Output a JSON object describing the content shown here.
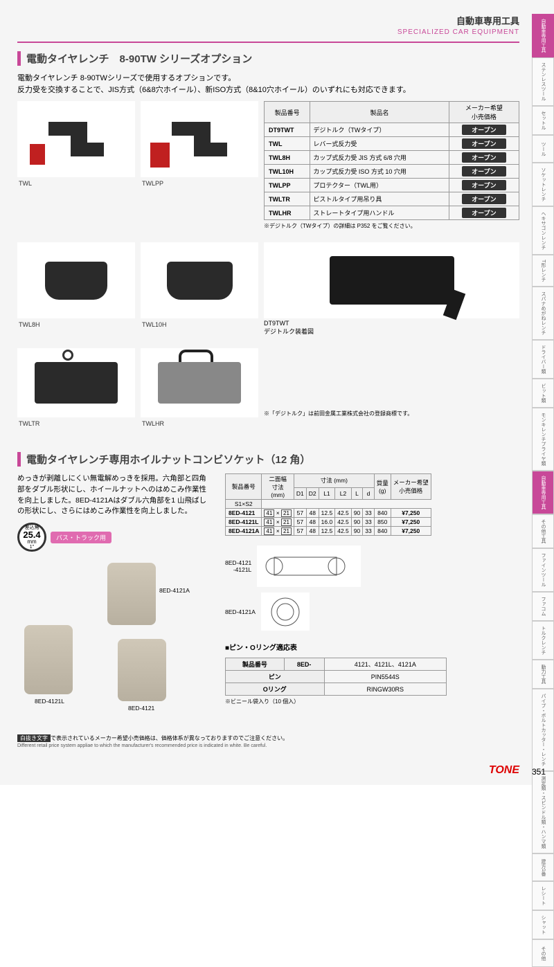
{
  "header": {
    "jp_category": "自動車専用工具",
    "en_category": "SPECIALIZED CAR EQUIPMENT"
  },
  "section1": {
    "title": "電動タイヤレンチ　8-90TW シリーズオプション",
    "intro1": "電動タイヤレンチ 8-90TWシリーズで使用するオプションです。",
    "intro2": "反力受を交換することで、JIS方式（6&8穴ホイール）、新ISO方式（8&10穴ホイール）のいずれにも対応できます。",
    "table_headers": {
      "pn": "製品番号",
      "name": "製品名",
      "price": "メーカー希望\n小売価格"
    },
    "rows": [
      {
        "pn": "DT9TWT",
        "name": "デジトルク（TWタイプ）",
        "price": "オープン"
      },
      {
        "pn": "TWL",
        "name": "レバー式反力受",
        "price": "オープン"
      },
      {
        "pn": "TWL8H",
        "name": "カップ式反力受 JIS 方式 6/8 穴用",
        "price": "オープン"
      },
      {
        "pn": "TWL10H",
        "name": "カップ式反力受 ISO 方式 10 穴用",
        "price": "オープン"
      },
      {
        "pn": "TWLPP",
        "name": "プロテクター（TWL用）",
        "price": "オープン"
      },
      {
        "pn": "TWLTR",
        "name": "ピストルタイプ用吊り具",
        "price": "オープン"
      },
      {
        "pn": "TWLHR",
        "name": "ストレートタイプ用ハンドル",
        "price": "オープン"
      }
    ],
    "note1": "※デジトルク（TWタイプ）の詳細は P352 をご覧ください。",
    "img_labels": {
      "twl": "TWL",
      "twlpp": "TWLPP",
      "twl8h": "TWL8H",
      "twl10h": "TWL10H",
      "twltr": "TWLTR",
      "twlhr": "TWLHR",
      "dt9twt": "DT9TWT",
      "dt9twt_cap": "デジトルク装着図"
    },
    "note2": "※「デジトルク」は前田金属工業株式会社の登録商標です。"
  },
  "section2": {
    "title": "電動タイヤレンチ専用ホイルナットコンビソケット（12 角）",
    "text": "めっきが剥離しにくい無電解めっきを採用。六角部と四角部をダブル形状にし、ホイールナットへのはめこみ作業性を向上しました。8ED-4121Aはダブル六角部を1 山飛ばしの形状にし、さらにはめこみ作業性を向上しました。",
    "badge_top": "差込角",
    "badge_val": "25.4",
    "badge_unit": "mm",
    "badge_sub": "1\"",
    "pink_badge": "バス・トラック用",
    "tbl_headers": {
      "pn": "製品番号",
      "twoface": "二面幅\n寸法\n(mm)",
      "dims": "寸法 (mm)",
      "mass": "質量\n(g)",
      "price": "メーカー希望\n小売価格",
      "s1": "S1×S2",
      "d1": "D1",
      "d2": "D2",
      "l1": "L1",
      "l2": "L2",
      "l": "L",
      "d": "d"
    },
    "rows": [
      {
        "pn": "8ED-4121",
        "s": "41 × 21",
        "d1": "57",
        "d2": "48",
        "l1": "12.5",
        "l2": "42.5",
        "l": "90",
        "d": "33",
        "m": "840",
        "p": "¥7,250"
      },
      {
        "pn": "8ED-4121L",
        "s": "41 × 21",
        "d1": "57",
        "d2": "48",
        "l1": "16.0",
        "l2": "42.5",
        "l": "90",
        "d": "33",
        "m": "850",
        "p": "¥7,250"
      },
      {
        "pn": "8ED-4121A",
        "s": "41 × 21",
        "d1": "57",
        "d2": "48",
        "l1": "12.5",
        "l2": "42.5",
        "l": "90",
        "d": "33",
        "m": "840",
        "p": "¥7,250"
      }
    ],
    "diag1_label": "8ED-4121\n-4121L",
    "diag2_label": "8ED-4121A",
    "socket_labels": {
      "a": "8ED-4121A",
      "l": "8ED-4121L",
      "n": "8ED-4121"
    },
    "pin_title": "■ピン・Oリング適応表",
    "pin_headers": {
      "pn": "製品番号",
      "prefix": "8ED-",
      "models": "4121、4121L、4121A",
      "pin": "ピン",
      "pin_v": "PIN5544S",
      "oring": "Oリング",
      "oring_v": "RINGW30RS"
    },
    "pin_note": "※ビニール袋入り（10 個入）"
  },
  "footer": {
    "jp_prefix": "白抜き文字",
    "jp_rest": "で表示されているメーカー希望小売価格は、価格体系が異なっておりますのでご注意ください。",
    "en": "Different retail price system appliae to which the manufacturer's recommended price is indicated in white. Be careful.",
    "logo": "TONE",
    "page": "351"
  },
  "tabs": [
    "自動車専用工具",
    "ステンレスツール",
    "セットル",
    "ツール",
    "ソケットレンチ",
    "ヘキサゴンレンチ",
    "T形レンチ",
    "スパナめがねレンチ",
    "ドライバー類",
    "ビット類",
    "モンキレンチプライヤ類",
    "自動車専用工具",
    "その他工具",
    "ファインツール",
    "ファコム",
    "トルクレンチ",
    "動力工具",
    "パイプ・ボルトカッター・レンチ",
    "測定類・スピンドル類・ハンマ類",
    "建方1番",
    "レシート",
    "シャット",
    "その他"
  ],
  "active_tab_index": 0
}
